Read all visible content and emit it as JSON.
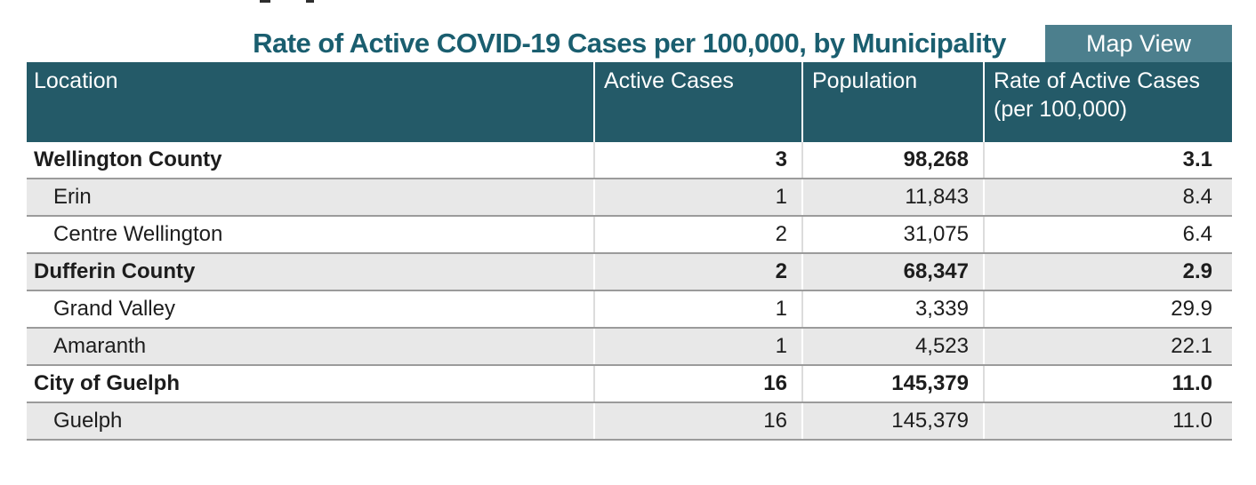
{
  "title": "Rate of Active COVID-19 Cases per 100,000, by Municipality",
  "toolbar": {
    "map_view_label": "Map View"
  },
  "table": {
    "columns": [
      {
        "label": "Location"
      },
      {
        "label": "Active Cases"
      },
      {
        "label": "Population"
      },
      {
        "label": "Rate of Active Cases (per 100,000)"
      }
    ],
    "rows": [
      {
        "location": "Wellington County",
        "active_cases": "3",
        "population": "98,268",
        "rate": "3.1"
      },
      {
        "location": "Erin",
        "active_cases": "1",
        "population": "11,843",
        "rate": "8.4"
      },
      {
        "location": "Centre Wellington",
        "active_cases": "2",
        "population": "31,075",
        "rate": "6.4"
      },
      {
        "location": "Dufferin County",
        "active_cases": "2",
        "population": "68,347",
        "rate": "2.9"
      },
      {
        "location": "Grand Valley",
        "active_cases": "1",
        "population": "3,339",
        "rate": "29.9"
      },
      {
        "location": "Amaranth",
        "active_cases": "1",
        "population": "4,523",
        "rate": "22.1"
      },
      {
        "location": "City of Guelph",
        "active_cases": "16",
        "population": "145,379",
        "rate": "11.0"
      },
      {
        "location": "Guelph",
        "active_cases": "16",
        "population": "145,379",
        "rate": "11.0"
      }
    ]
  },
  "colors": {
    "title_color": "#1A5E6F",
    "header_bg": "#245A68",
    "header_text": "#FFFFFF",
    "button_bg": "#4C7F8D",
    "button_text": "#FFFFFF",
    "row_alt_bg": "#E8E8E8",
    "row_border": "#9B9B9B",
    "cell_divider": "#DCDCDC",
    "body_text": "#1D1D1D"
  }
}
